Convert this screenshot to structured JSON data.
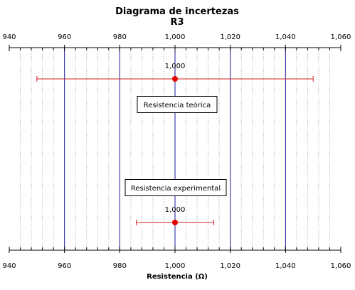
{
  "chart_data": {
    "type": "scatter",
    "title": "Diagrama de incertezas",
    "subtitle": "R3",
    "xlabel": "Resistencia (Ω)",
    "xlim": [
      940,
      1060
    ],
    "major_ticks": [
      940,
      960,
      980,
      1000,
      1020,
      1040,
      1060
    ],
    "tick_labels": [
      "940",
      "960",
      "980",
      "1,000",
      "1,020",
      "1,040",
      "1,060"
    ],
    "minor_tick_step": 4,
    "grid": true,
    "series": [
      {
        "name": "Resistencia teórica",
        "value": 1000,
        "value_label": "1,000",
        "error_low": 950,
        "error_high": 1050
      },
      {
        "name": "Resistencia experimental",
        "value": 1000,
        "value_label": "1,000",
        "error_low": 986,
        "error_high": 1014
      }
    ],
    "colors": {
      "major_grid": "#1a1aa0",
      "minor_grid": "#aaaaaa",
      "error_bar": "#d42020",
      "point": "#e00000",
      "axis": "#000000"
    }
  }
}
